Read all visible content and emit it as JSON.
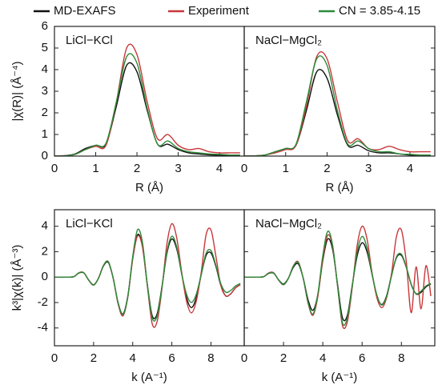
{
  "chart_data": [
    {
      "type": "line",
      "title": "LiCl−KCl",
      "x_label": "R (Å)",
      "y_label": "|χ(R)| (Å⁻⁴)",
      "x": [
        0,
        0.25,
        0.5,
        0.75,
        1,
        1.25,
        1.5,
        1.75,
        2,
        2.25,
        2.5,
        2.75,
        3,
        3.25,
        3.5,
        3.75,
        4,
        4.25,
        4.5
      ],
      "series": [
        {
          "name": "MD-EXAFS",
          "color": "#111111",
          "values": [
            0,
            0.02,
            0.1,
            0.35,
            0.5,
            0.55,
            2.3,
            4.2,
            3.9,
            2.1,
            0.55,
            0.55,
            0.3,
            0.15,
            0.1,
            0.06,
            0.04,
            0.03,
            0.02
          ]
        },
        {
          "name": "Experiment",
          "color": "#c8373a",
          "values": [
            0,
            0.01,
            0.08,
            0.3,
            0.45,
            0.5,
            2.5,
            5.0,
            4.7,
            2.5,
            0.8,
            1.0,
            0.5,
            0.3,
            0.35,
            0.2,
            0.15,
            0.15,
            0.15
          ]
        },
        {
          "name": "CN = 3.85-4.15",
          "color": "#2e8b3a",
          "values": [
            0,
            0.01,
            0.08,
            0.3,
            0.5,
            0.6,
            2.5,
            4.6,
            4.3,
            2.2,
            0.55,
            0.7,
            0.35,
            0.2,
            0.15,
            0.1,
            0.08,
            0.05,
            0.05
          ]
        }
      ],
      "xlim": [
        0,
        4.6
      ],
      "ylim": [
        0,
        6
      ],
      "xticks": [
        0,
        1,
        2,
        3,
        4
      ],
      "yticks": [
        0,
        1,
        2,
        3,
        4,
        5,
        6
      ]
    },
    {
      "type": "line",
      "title": "NaCl−MgCl₂",
      "x_label": "R (Å)",
      "x": [
        0,
        0.25,
        0.5,
        0.75,
        1,
        1.25,
        1.5,
        1.75,
        2,
        2.25,
        2.5,
        2.75,
        3,
        3.25,
        3.5,
        3.75,
        4,
        4.25,
        4.5
      ],
      "series": [
        {
          "color": "#111111",
          "values": [
            0,
            0.01,
            0.05,
            0.2,
            0.35,
            0.5,
            2.1,
            3.9,
            3.6,
            1.9,
            0.5,
            0.5,
            0.25,
            0.15,
            0.15,
            0.1,
            0.05,
            0.05,
            0.05
          ]
        },
        {
          "color": "#c8373a",
          "values": [
            0,
            0.01,
            0.05,
            0.15,
            0.3,
            0.5,
            2.3,
            4.6,
            4.5,
            2.5,
            0.7,
            0.8,
            0.35,
            0.3,
            0.45,
            0.3,
            0.2,
            0.2,
            0.2
          ]
        },
        {
          "color": "#2e8b3a",
          "values": [
            0,
            0.01,
            0.05,
            0.2,
            0.35,
            0.55,
            2.5,
            4.5,
            4.2,
            2.1,
            0.55,
            0.7,
            0.35,
            0.2,
            0.2,
            0.1,
            0.08,
            0.05,
            0.05
          ]
        }
      ],
      "xlim": [
        0,
        4.6
      ],
      "ylim": [
        0,
        6
      ],
      "xticks": [
        0,
        1,
        2,
        3,
        4
      ],
      "yticks": [
        0,
        1,
        2,
        3,
        4,
        5,
        6
      ]
    },
    {
      "type": "line",
      "title": "LiCl−KCl",
      "x_label": "k (A⁻¹)",
      "y_label": "k³|χ(k)| (Å⁻³)",
      "x": [
        0,
        0.25,
        0.5,
        0.75,
        1,
        1.25,
        1.5,
        1.75,
        2,
        2.25,
        2.5,
        2.75,
        3,
        3.25,
        3.5,
        3.75,
        4,
        4.25,
        4.5,
        4.75,
        5,
        5.25,
        5.5,
        5.75,
        6,
        6.25,
        6.5,
        6.75,
        7,
        7.25,
        7.5,
        7.75,
        8,
        8.25,
        8.5,
        8.75,
        9,
        9.25,
        9.5
      ],
      "series": [
        {
          "color": "#111111",
          "values": [
            0,
            0,
            0,
            0,
            0.04,
            0.32,
            0.33,
            -0.23,
            -0.6,
            -0.09,
            0.86,
            1.16,
            -0.07,
            -1.99,
            -2.9,
            -1.5,
            1.45,
            3.34,
            2.42,
            -0.61,
            -3.05,
            -2.88,
            -0.7,
            1.87,
            3.0,
            2.21,
            0.3,
            -1.61,
            -2.4,
            -1.61,
            0.18,
            1.7,
            1.9,
            0.85,
            -0.63,
            -1.47,
            -1.33,
            -0.85,
            -0.6
          ]
        },
        {
          "color": "#c8373a",
          "values": [
            0,
            0,
            0,
            0,
            0.04,
            0.34,
            0.35,
            -0.24,
            -0.63,
            -0.09,
            0.9,
            1.22,
            -0.07,
            -2.09,
            -3.05,
            -1.58,
            1.41,
            3.24,
            2.35,
            -0.74,
            -3.69,
            -3.48,
            -0.85,
            2.62,
            4.2,
            3.09,
            0.42,
            -1.88,
            -2.81,
            -1.88,
            0.35,
            3.32,
            3.71,
            1.66,
            -0.63,
            -1.47,
            -1.33,
            -0.85,
            -0.6
          ]
        },
        {
          "color": "#2e8b3a",
          "values": [
            0,
            0,
            0,
            0,
            0.04,
            0.33,
            0.34,
            -0.24,
            -0.62,
            -0.09,
            0.9,
            1.22,
            -0.07,
            -2.0,
            -2.95,
            -1.55,
            1.62,
            3.74,
            2.71,
            -0.65,
            -3.23,
            -3.05,
            -0.75,
            2.0,
            3.21,
            2.36,
            0.3,
            -1.34,
            -1.99,
            -1.34,
            0.2,
            1.87,
            2.09,
            0.94,
            -0.5,
            -1.18,
            -1.06,
            -0.7,
            -0.5
          ]
        }
      ],
      "xlim": [
        0,
        9.7
      ],
      "ylim": [
        -5.4,
        5.3
      ],
      "xticks": [
        0,
        2,
        4,
        6,
        8
      ],
      "yticks": [
        -4,
        -2,
        0,
        2,
        4
      ]
    },
    {
      "type": "line",
      "title": "NaCl−MgCl₂",
      "x_label": "k (A⁻¹)",
      "x": [
        0,
        0.25,
        0.5,
        0.75,
        1,
        1.25,
        1.5,
        1.75,
        2,
        2.25,
        2.5,
        2.75,
        3,
        3.25,
        3.5,
        3.75,
        4,
        4.25,
        4.5,
        4.75,
        5,
        5.25,
        5.5,
        5.75,
        6,
        6.25,
        6.5,
        6.75,
        7,
        7.25,
        7.5,
        7.75,
        8,
        8.25,
        8.5,
        8.75,
        9,
        9.25,
        9.5
      ],
      "series": [
        {
          "color": "#111111",
          "values": [
            0,
            0,
            0,
            0,
            0.04,
            0.29,
            0.3,
            -0.21,
            -0.54,
            -0.08,
            0.77,
            1.04,
            -0.06,
            -1.79,
            -2.61,
            -1.35,
            1.31,
            3.0,
            2.18,
            -0.55,
            -3.2,
            -3.0,
            -0.63,
            1.68,
            2.7,
            1.99,
            0.27,
            -1.45,
            -2.16,
            -1.45,
            0.16,
            1.53,
            1.71,
            0.77,
            -0.57,
            -1.32,
            -1.2,
            -0.77,
            -0.54
          ]
        },
        {
          "color": "#c8373a",
          "values": [
            0,
            0,
            0,
            0,
            0.04,
            0.33,
            0.34,
            -0.24,
            -0.6,
            -0.09,
            0.88,
            1.2,
            -0.07,
            -2.05,
            -3.0,
            -1.5,
            1.45,
            3.3,
            2.4,
            -0.7,
            -3.8,
            -3.5,
            -0.8,
            2.5,
            4.0,
            3.0,
            0.4,
            -1.6,
            -2.4,
            -1.6,
            0.3,
            3.2,
            3.7,
            1.2,
            -2.8,
            0.8,
            -2.5,
            0.9,
            -1.5
          ]
        },
        {
          "color": "#2e8b3a",
          "values": [
            0,
            0,
            0,
            0,
            0.04,
            0.3,
            0.32,
            -0.22,
            -0.58,
            -0.09,
            0.85,
            1.15,
            -0.07,
            -2.0,
            -2.9,
            -1.3,
            1.7,
            3.6,
            2.5,
            -0.7,
            -3.6,
            -3.2,
            -0.7,
            2.0,
            3.2,
            2.3,
            0.3,
            -1.4,
            -2.2,
            -1.5,
            0.1,
            1.6,
            1.8,
            0.8,
            -0.6,
            -1.3,
            -1.1,
            -0.7,
            -0.5
          ]
        }
      ],
      "xlim": [
        0,
        9.7
      ],
      "ylim": [
        -5.4,
        5.3
      ],
      "xticks": [
        0,
        2,
        4,
        6,
        8
      ],
      "yticks": [
        -4,
        -2,
        0,
        2,
        4
      ]
    }
  ]
}
